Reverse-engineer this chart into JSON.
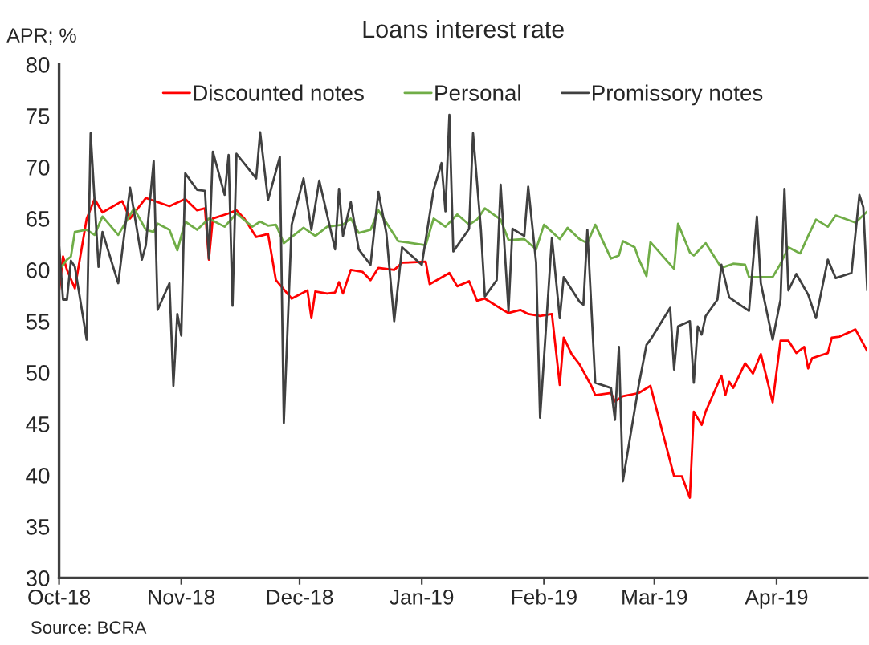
{
  "chart_data": {
    "type": "line",
    "title": "Loans interest rate",
    "ylabel": "APR; %",
    "annotations": [
      "Source: BCRA"
    ],
    "xlim": [
      "2018-10-01",
      "2019-04-24"
    ],
    "ylim": [
      30,
      80
    ],
    "xticks": [
      {
        "value": "2018-10-01",
        "label": "Oct-18"
      },
      {
        "value": "2018-11-01",
        "label": "Nov-18"
      },
      {
        "value": "2018-12-01",
        "label": "Dec-18"
      },
      {
        "value": "2019-01-01",
        "label": "Jan-19"
      },
      {
        "value": "2019-02-01",
        "label": "Feb-19"
      },
      {
        "value": "2019-03-01",
        "label": "Mar-19"
      },
      {
        "value": "2019-04-01",
        "label": "Apr-19"
      }
    ],
    "yticks": [
      30,
      35,
      40,
      45,
      50,
      55,
      60,
      65,
      70,
      75,
      80
    ],
    "grid": false,
    "legend": "top",
    "marker": "none",
    "line_style": "solid",
    "series": [
      {
        "name": "Discounted notes",
        "color": "#ff0000",
        "x": [
          "2018-10-01",
          "2018-10-02",
          "2018-10-03",
          "2018-10-05",
          "2018-10-08",
          "2018-10-10",
          "2018-10-12",
          "2018-10-17",
          "2018-10-19",
          "2018-10-23",
          "2018-10-29",
          "2018-11-02",
          "2018-11-05",
          "2018-11-07",
          "2018-11-08",
          "2018-11-09",
          "2018-11-13",
          "2018-11-15",
          "2018-11-17",
          "2018-11-20",
          "2018-11-23",
          "2018-11-25",
          "2018-11-29",
          "2018-12-03",
          "2018-12-04",
          "2018-12-05",
          "2018-12-08",
          "2018-12-10",
          "2018-12-11",
          "2018-12-12",
          "2018-12-14",
          "2018-12-17",
          "2018-12-19",
          "2018-12-21",
          "2018-12-25",
          "2018-12-27",
          "2019-01-02",
          "2019-01-03",
          "2019-01-08",
          "2019-01-10",
          "2019-01-13",
          "2019-01-15",
          "2019-01-17",
          "2019-01-22",
          "2019-01-23",
          "2019-01-26",
          "2019-01-28",
          "2019-01-31",
          "2019-02-03",
          "2019-02-05",
          "2019-02-06",
          "2019-02-08",
          "2019-02-10",
          "2019-02-13",
          "2019-02-14",
          "2019-02-18",
          "2019-02-19",
          "2019-02-21",
          "2019-02-25",
          "2019-02-28",
          "2019-03-06",
          "2019-03-08",
          "2019-03-10",
          "2019-03-11",
          "2019-03-13",
          "2019-03-14",
          "2019-03-18",
          "2019-03-19",
          "2019-03-20",
          "2019-03-21",
          "2019-03-24",
          "2019-03-26",
          "2019-03-28",
          "2019-03-31",
          "2019-04-02",
          "2019-04-04",
          "2019-04-06",
          "2019-04-08",
          "2019-04-09",
          "2019-04-10",
          "2019-04-14",
          "2019-04-15",
          "2019-04-17",
          "2019-04-21",
          "2019-04-24"
        ],
        "values": [
          57.9,
          61.3,
          60.0,
          58.2,
          65.0,
          66.9,
          65.6,
          66.7,
          65.0,
          67.0,
          66.2,
          66.9,
          65.8,
          66.0,
          61.0,
          65.0,
          65.5,
          65.8,
          65.0,
          63.2,
          63.5,
          59.0,
          57.2,
          58.0,
          55.3,
          57.9,
          57.7,
          57.8,
          58.8,
          57.7,
          60.0,
          59.8,
          59.0,
          60.2,
          60.0,
          60.7,
          60.8,
          58.6,
          59.7,
          58.4,
          58.9,
          57.0,
          57.2,
          56.0,
          55.8,
          56.1,
          55.7,
          55.5,
          55.7,
          48.8,
          53.4,
          51.8,
          50.8,
          48.7,
          47.8,
          48.0,
          47.2,
          47.7,
          48.0,
          48.7,
          39.9,
          39.9,
          37.8,
          46.2,
          44.9,
          46.2,
          49.7,
          47.8,
          49.1,
          48.5,
          50.9,
          49.9,
          51.8,
          47.1,
          53.1,
          53.1,
          51.9,
          52.5,
          50.4,
          51.4,
          51.9,
          53.4,
          53.5,
          54.2,
          52.1
        ]
      },
      {
        "name": "Personal",
        "color": "#70ad47",
        "x": [
          "2018-10-01",
          "2018-10-03",
          "2018-10-04",
          "2018-10-05",
          "2018-10-08",
          "2018-10-10",
          "2018-10-12",
          "2018-10-16",
          "2018-10-18",
          "2018-10-20",
          "2018-10-23",
          "2018-10-25",
          "2018-10-26",
          "2018-10-29",
          "2018-10-31",
          "2018-11-02",
          "2018-11-05",
          "2018-11-08",
          "2018-11-12",
          "2018-11-15",
          "2018-11-19",
          "2018-11-21",
          "2018-11-23",
          "2018-11-25",
          "2018-11-27",
          "2018-12-02",
          "2018-12-05",
          "2018-12-08",
          "2018-12-12",
          "2018-12-14",
          "2018-12-16",
          "2018-12-19",
          "2018-12-21",
          "2018-12-26",
          "2019-01-02",
          "2019-01-04",
          "2019-01-07",
          "2019-01-10",
          "2019-01-13",
          "2019-01-15",
          "2019-01-17",
          "2019-01-21",
          "2019-01-23",
          "2019-01-27",
          "2019-01-30",
          "2019-02-01",
          "2019-02-05",
          "2019-02-07",
          "2019-02-10",
          "2019-02-12",
          "2019-02-14",
          "2019-02-18",
          "2019-02-20",
          "2019-02-21",
          "2019-02-24",
          "2019-02-25",
          "2019-02-27",
          "2019-02-28",
          "2019-03-06",
          "2019-03-07",
          "2019-03-10",
          "2019-03-11",
          "2019-03-14",
          "2019-03-18",
          "2019-03-21",
          "2019-03-24",
          "2019-03-25",
          "2019-03-31",
          "2019-04-02",
          "2019-04-04",
          "2019-04-07",
          "2019-04-09",
          "2019-04-11",
          "2019-04-14",
          "2019-04-16",
          "2019-04-21",
          "2019-04-24"
        ],
        "values": [
          60.0,
          61.0,
          61.3,
          63.7,
          63.9,
          63.4,
          65.2,
          63.4,
          64.7,
          66.0,
          63.9,
          63.7,
          64.5,
          63.9,
          61.9,
          64.7,
          63.9,
          65.0,
          64.2,
          65.5,
          64.2,
          64.7,
          64.3,
          64.4,
          62.6,
          64.1,
          63.3,
          64.2,
          64.4,
          65.0,
          63.6,
          63.9,
          65.8,
          62.8,
          62.4,
          65.0,
          64.2,
          65.4,
          64.4,
          64.9,
          66.0,
          64.9,
          62.9,
          63.0,
          62.0,
          64.4,
          63.0,
          64.1,
          63.0,
          62.6,
          64.4,
          61.1,
          61.4,
          62.8,
          62.2,
          61.1,
          59.4,
          62.7,
          60.1,
          64.5,
          61.7,
          61.4,
          62.6,
          60.2,
          60.6,
          60.5,
          59.3,
          59.3,
          60.6,
          62.2,
          61.6,
          63.3,
          64.9,
          64.2,
          65.3,
          64.6,
          65.7
        ]
      },
      {
        "name": "Promissory notes",
        "color": "#404040",
        "x": [
          "2018-10-01",
          "2018-10-02",
          "2018-10-03",
          "2018-10-04",
          "2018-10-05",
          "2018-10-08",
          "2018-10-09",
          "2018-10-11",
          "2018-10-12",
          "2018-10-16",
          "2018-10-19",
          "2018-10-22",
          "2018-10-23",
          "2018-10-25",
          "2018-10-26",
          "2018-10-29",
          "2018-10-30",
          "2018-10-31",
          "2018-11-01",
          "2018-11-02",
          "2018-11-05",
          "2018-11-07",
          "2018-11-08",
          "2018-11-09",
          "2018-11-12",
          "2018-11-13",
          "2018-11-14",
          "2018-11-15",
          "2018-11-20",
          "2018-11-21",
          "2018-11-23",
          "2018-11-26",
          "2018-11-27",
          "2018-11-29",
          "2018-12-02",
          "2018-12-04",
          "2018-12-06",
          "2018-12-10",
          "2018-12-11",
          "2018-12-12",
          "2018-12-14",
          "2018-12-16",
          "2018-12-19",
          "2018-12-21",
          "2018-12-23",
          "2018-12-25",
          "2018-12-27",
          "2019-01-01",
          "2019-01-04",
          "2019-01-06",
          "2019-01-07",
          "2019-01-08",
          "2019-01-09",
          "2019-01-13",
          "2019-01-14",
          "2019-01-16",
          "2019-01-17",
          "2019-01-20",
          "2019-01-21",
          "2019-01-23",
          "2019-01-24",
          "2019-01-27",
          "2019-01-28",
          "2019-01-30",
          "2019-01-31",
          "2019-02-03",
          "2019-02-05",
          "2019-02-06",
          "2019-02-08",
          "2019-02-10",
          "2019-02-11",
          "2019-02-12",
          "2019-02-14",
          "2019-02-18",
          "2019-02-19",
          "2019-02-20",
          "2019-02-21",
          "2019-02-25",
          "2019-02-27",
          "2019-02-28",
          "2019-03-05",
          "2019-03-06",
          "2019-03-07",
          "2019-03-10",
          "2019-03-11",
          "2019-03-12",
          "2019-03-13",
          "2019-03-14",
          "2019-03-17",
          "2019-03-18",
          "2019-03-20",
          "2019-03-25",
          "2019-03-27",
          "2019-03-28",
          "2019-03-31",
          "2019-04-02",
          "2019-04-03",
          "2019-04-04",
          "2019-04-06",
          "2019-04-09",
          "2019-04-11",
          "2019-04-14",
          "2019-04-16",
          "2019-04-20",
          "2019-04-22",
          "2019-04-23",
          "2019-04-24"
        ],
        "values": [
          62.4,
          57.1,
          57.1,
          60.9,
          60.3,
          53.2,
          73.3,
          60.3,
          63.7,
          58.7,
          68.0,
          61.0,
          62.4,
          70.6,
          56.1,
          58.7,
          48.7,
          55.7,
          53.6,
          69.4,
          67.8,
          67.7,
          61.1,
          71.5,
          67.3,
          71.2,
          56.5,
          71.3,
          68.9,
          73.4,
          66.8,
          71.0,
          45.1,
          64.4,
          68.9,
          63.9,
          68.7,
          62.0,
          67.9,
          63.3,
          66.6,
          62.0,
          60.5,
          67.6,
          63.6,
          55.0,
          62.2,
          60.5,
          67.8,
          70.4,
          65.7,
          75.1,
          61.8,
          64.0,
          73.3,
          63.9,
          57.4,
          59.0,
          68.3,
          56.0,
          64.0,
          63.3,
          68.1,
          60.7,
          45.6,
          63.1,
          55.3,
          59.3,
          58.1,
          56.9,
          56.6,
          63.9,
          49.0,
          48.5,
          45.4,
          52.5,
          39.4,
          48.7,
          52.7,
          53.2,
          56.3,
          50.3,
          54.5,
          55.0,
          49.0,
          54.5,
          53.7,
          55.5,
          57.1,
          60.5,
          57.3,
          56.0,
          65.2,
          58.7,
          53.2,
          57.1,
          67.9,
          58.0,
          59.6,
          57.6,
          55.3,
          61.0,
          59.2,
          59.7,
          67.3,
          66.1,
          58.0
        ]
      }
    ]
  }
}
